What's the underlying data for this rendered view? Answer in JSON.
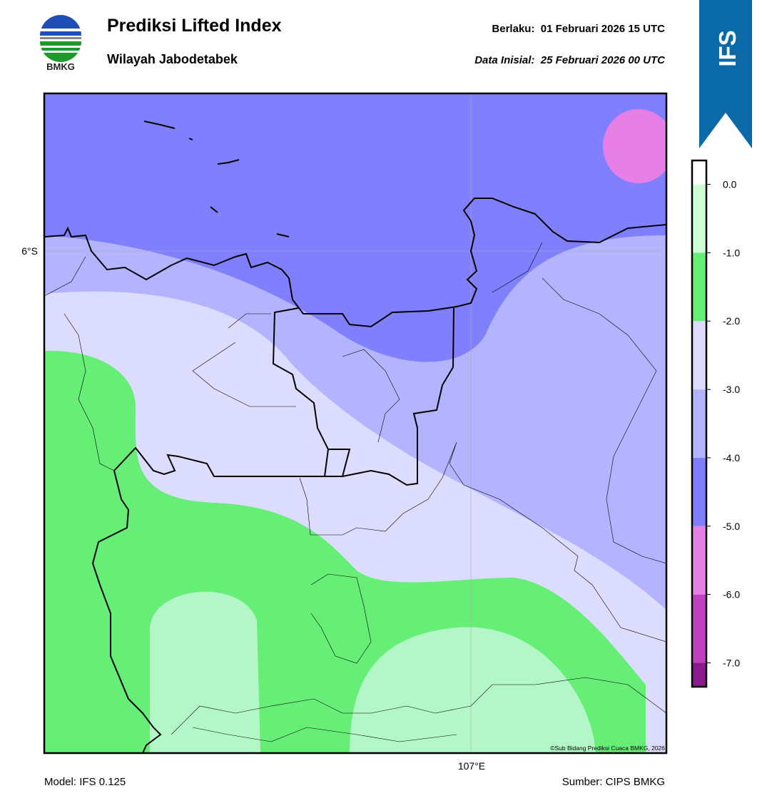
{
  "header": {
    "title": "Prediksi Lifted Index",
    "subtitle": "Wilayah Jabodetabek",
    "valid": "Berlaku:  01 Februari 2026 15 UTC",
    "init": "Data Inisial:  25 Februari 2026 00 UTC",
    "logo": "BMKG",
    "badge": "IFS"
  },
  "map": {
    "lat_label": "6°S",
    "lon_label": "107°E",
    "credit": "©Sub Bidang Prediksi Cuaca BMKG, 2026"
  },
  "colorbar": {
    "range": [
      -7.35,
      0.35
    ],
    "ticks": [
      {
        "value": -7,
        "label": "-7.0"
      },
      {
        "value": -6,
        "label": "-6.0"
      },
      {
        "value": -5,
        "label": "-5.0"
      },
      {
        "value": -4,
        "label": "-4.0"
      },
      {
        "value": -3,
        "label": "-3.0"
      },
      {
        "value": -2,
        "label": "-2.0"
      },
      {
        "value": -1,
        "label": "-1.0"
      },
      {
        "value": 0,
        "label": "0.0"
      }
    ],
    "colors": [
      "#8b1a8b",
      "#c040c0",
      "#e680e6",
      "#8080ff",
      "#b3b3ff",
      "#dcdcff",
      "#66ee77",
      "#ccffd4",
      "#ffffff"
    ]
  },
  "footer": {
    "model": "Model: IFS 0.125",
    "source": "Sumber: CIPS BMKG"
  }
}
